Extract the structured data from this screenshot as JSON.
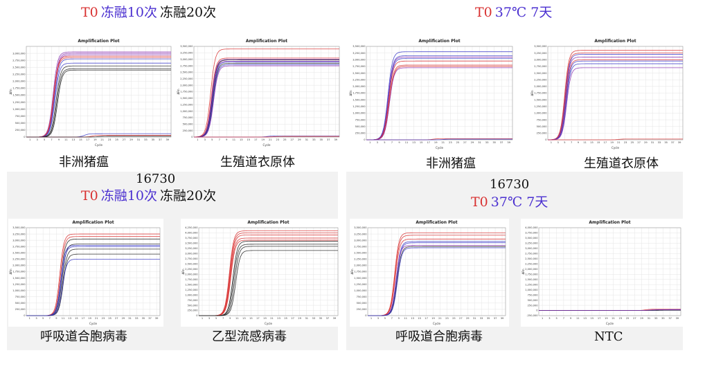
{
  "colors": {
    "red": "#d83030",
    "blue": "#3a3ac8",
    "purple": "#8a2fb0",
    "black": "#222222",
    "grid": "#e4e4e4"
  },
  "headers": [
    {
      "id": "hdr-top-left",
      "parts": [
        {
          "text": "T0",
          "color": "#d83030"
        },
        {
          "text": "冻融10次",
          "color": "#4a2fd0"
        },
        {
          "text": "冻融20次",
          "color": "#111111"
        }
      ]
    },
    {
      "id": "hdr-top-right",
      "parts": [
        {
          "text": "T0",
          "color": "#d83030"
        },
        {
          "text": "37℃ 7天",
          "color": "#4a2fd0"
        }
      ]
    },
    {
      "id": "hdr-bottom-left",
      "parts": [
        {
          "text": "T0",
          "color": "#d83030"
        },
        {
          "text": "冻融10次",
          "color": "#4a2fd0"
        },
        {
          "text": "冻融20次",
          "color": "#111111"
        }
      ]
    },
    {
      "id": "hdr-bottom-right",
      "parts": [
        {
          "text": "T0",
          "color": "#d83030"
        },
        {
          "text": "37℃ 7天",
          "color": "#4a2fd0"
        }
      ]
    }
  ],
  "labels": {
    "num_left": "16730",
    "num_right": "16730",
    "captions": [
      "非洲猪瘟",
      "生殖道衣原体",
      "非洲猪瘟",
      "生殖道衣原体",
      "呼吸道合胞病毒",
      "乙型流感病毒",
      "呼吸道合胞病毒",
      "NTC"
    ]
  },
  "chart_data": [
    {
      "type": "line",
      "title": "Amplification Plot",
      "xlabel": "Cycle",
      "ylabel": "ΔRn",
      "xlim": [
        0,
        40
      ],
      "ylim": [
        0,
        3250000
      ],
      "yticks": [
        "3,000,000",
        "2,750,000",
        "2,500,000",
        "2,250,000",
        "2,000,000",
        "1,750,000",
        "1,500,000",
        "1,250,000",
        "1,000,000",
        "750,000",
        "500,000",
        "250,000",
        "0"
      ],
      "xticks": [
        "1",
        "3",
        "5",
        "7",
        "9",
        "11",
        "13",
        "15",
        "17",
        "19",
        "21",
        "23",
        "25",
        "27",
        "29",
        "31",
        "33",
        "35",
        "37",
        "39"
      ],
      "series": [
        {
          "color": "purple",
          "plateau": 3050000,
          "ct": 7.4
        },
        {
          "color": "purple",
          "plateau": 3000000,
          "ct": 7.6
        },
        {
          "color": "purple",
          "plateau": 2950000,
          "ct": 7.7
        },
        {
          "color": "red",
          "plateau": 2900000,
          "ct": 7.5
        },
        {
          "color": "red",
          "plateau": 2850000,
          "ct": 7.6
        },
        {
          "color": "blue",
          "plateau": 2800000,
          "ct": 7.8
        },
        {
          "color": "blue",
          "plateau": 2650000,
          "ct": 7.9
        },
        {
          "color": "black",
          "plateau": 2550000,
          "ct": 8.2
        },
        {
          "color": "black",
          "plateau": 2450000,
          "ct": 8.4
        },
        {
          "color": "black",
          "plateau": 2400000,
          "ct": 8.6
        },
        {
          "color": "blue",
          "plateau": 120000,
          "ct": 16
        },
        {
          "color": "red",
          "plateau": 60000,
          "ct": 18
        },
        {
          "color": "black",
          "plateau": 30000,
          "ct": 20
        }
      ]
    },
    {
      "type": "line",
      "title": "Amplification Plot",
      "xlabel": "Cycle",
      "ylabel": "ΔRn",
      "xlim": [
        0,
        40
      ],
      "ylim": [
        0,
        3500000
      ],
      "yticks": [
        "3,500,000",
        "3,250,000",
        "3,000,000",
        "2,750,000",
        "2,500,000",
        "2,250,000",
        "2,000,000",
        "1,750,000",
        "1,500,000",
        "1,250,000",
        "1,000,000",
        "750,000",
        "500,000",
        "250,000",
        "0"
      ],
      "xticks": [
        "1",
        "3",
        "5",
        "7",
        "9",
        "11",
        "13",
        "15",
        "17",
        "19",
        "21",
        "23",
        "25",
        "27",
        "29",
        "31",
        "33",
        "35",
        "37",
        "39"
      ],
      "series": [
        {
          "color": "red",
          "plateau": 3400000,
          "ct": 4.6
        },
        {
          "color": "red",
          "plateau": 3050000,
          "ct": 4.8
        },
        {
          "color": "purple",
          "plateau": 3000000,
          "ct": 4.9
        },
        {
          "color": "black",
          "plateau": 2980000,
          "ct": 5.0
        },
        {
          "color": "purple",
          "plateau": 2930000,
          "ct": 5.0
        },
        {
          "color": "blue",
          "plateau": 2900000,
          "ct": 5.1
        },
        {
          "color": "black",
          "plateau": 2850000,
          "ct": 5.2
        },
        {
          "color": "blue",
          "plateau": 2800000,
          "ct": 5.3
        },
        {
          "color": "purple",
          "plateau": 2750000,
          "ct": 5.4
        },
        {
          "color": "blue",
          "plateau": 40000,
          "ct": 20
        },
        {
          "color": "red",
          "plateau": 25000,
          "ct": 22
        }
      ]
    },
    {
      "type": "line",
      "title": "Amplification Plot",
      "xlabel": "Cycle",
      "ylabel": "ΔRn",
      "xlim": [
        0,
        40
      ],
      "ylim": [
        0,
        3500000
      ],
      "yticks": [
        "3,500,000",
        "3,250,000",
        "3,000,000",
        "2,750,000",
        "2,500,000",
        "2,250,000",
        "2,000,000",
        "1,750,000",
        "1,500,000",
        "1,250,000",
        "1,000,000",
        "750,000",
        "500,000",
        "250,000",
        "0"
      ],
      "xticks": [
        "1",
        "3",
        "5",
        "7",
        "9",
        "11",
        "13",
        "15",
        "17",
        "19",
        "21",
        "23",
        "25",
        "27",
        "29",
        "31",
        "33",
        "35",
        "37",
        "39"
      ],
      "series": [
        {
          "color": "blue",
          "plateau": 3300000,
          "ct": 5.9
        },
        {
          "color": "blue",
          "plateau": 3150000,
          "ct": 6.0
        },
        {
          "color": "purple",
          "plateau": 3100000,
          "ct": 6.0
        },
        {
          "color": "blue",
          "plateau": 3050000,
          "ct": 6.1
        },
        {
          "color": "red",
          "plateau": 2950000,
          "ct": 6.1
        },
        {
          "color": "red",
          "plateau": 2800000,
          "ct": 6.2
        },
        {
          "color": "red",
          "plateau": 2750000,
          "ct": 6.3
        },
        {
          "color": "purple",
          "plateau": 2700000,
          "ct": 6.3
        },
        {
          "color": "red",
          "plateau": 40000,
          "ct": 18
        },
        {
          "color": "blue",
          "plateau": 25000,
          "ct": 21
        }
      ]
    },
    {
      "type": "line",
      "title": "Amplification Plot",
      "xlabel": "Cycle",
      "ylabel": "ΔRn",
      "xlim": [
        0,
        40
      ],
      "ylim": [
        0,
        3500000
      ],
      "yticks": [
        "3,500,000",
        "3,250,000",
        "3,000,000",
        "2,750,000",
        "2,500,000",
        "2,250,000",
        "2,000,000",
        "1,750,000",
        "1,500,000",
        "1,250,000",
        "1,000,000",
        "750,000",
        "500,000",
        "250,000",
        "0"
      ],
      "xticks": [
        "1",
        "3",
        "5",
        "7",
        "9",
        "11",
        "13",
        "15",
        "17",
        "19",
        "21",
        "23",
        "25",
        "27",
        "29",
        "31",
        "33",
        "35",
        "37",
        "39"
      ],
      "series": [
        {
          "color": "red",
          "plateau": 3350000,
          "ct": 5.0
        },
        {
          "color": "red",
          "plateau": 3250000,
          "ct": 5.1
        },
        {
          "color": "blue",
          "plateau": 3200000,
          "ct": 5.2
        },
        {
          "color": "purple",
          "plateau": 3100000,
          "ct": 5.2
        },
        {
          "color": "red",
          "plateau": 3000000,
          "ct": 5.3
        },
        {
          "color": "blue",
          "plateau": 2950000,
          "ct": 5.4
        },
        {
          "color": "blue",
          "plateau": 2850000,
          "ct": 5.5
        },
        {
          "color": "purple",
          "plateau": 2700000,
          "ct": 5.6
        },
        {
          "color": "red",
          "plateau": 30000,
          "ct": 21
        }
      ]
    },
    {
      "type": "line",
      "title": "Amplification Plot",
      "xlabel": "Cycle",
      "ylabel": "ΔRn",
      "xlim": [
        0,
        40
      ],
      "ylim": [
        0,
        3500000
      ],
      "yticks": [
        "3,500,000",
        "3,250,000",
        "3,000,000",
        "2,750,000",
        "2,500,000",
        "2,250,000",
        "2,000,000",
        "1,750,000",
        "1,500,000",
        "1,250,000",
        "1,000,000",
        "750,000",
        "500,000",
        "250,000",
        "0"
      ],
      "xticks": [
        "1",
        "3",
        "5",
        "7",
        "9",
        "11",
        "13",
        "15",
        "17",
        "19",
        "21",
        "23",
        "25",
        "27",
        "29",
        "31",
        "33",
        "35",
        "37",
        "39"
      ],
      "series": [
        {
          "color": "red",
          "plateau": 3250000,
          "ct": 10.0
        },
        {
          "color": "red",
          "plateau": 3150000,
          "ct": 10.2
        },
        {
          "color": "black",
          "plateau": 3050000,
          "ct": 10.4
        },
        {
          "color": "black",
          "plateau": 2850000,
          "ct": 10.7
        },
        {
          "color": "blue",
          "plateau": 2800000,
          "ct": 10.3
        },
        {
          "color": "blue",
          "plateau": 2750000,
          "ct": 10.5
        },
        {
          "color": "black",
          "plateau": 2650000,
          "ct": 10.9
        },
        {
          "color": "black",
          "plateau": 2450000,
          "ct": 11.0
        },
        {
          "color": "blue",
          "plateau": 2250000,
          "ct": 10.8
        }
      ]
    },
    {
      "type": "line",
      "title": "Amplification Plot",
      "xlabel": "Cycle",
      "ylabel": "ΔRn",
      "xlim": [
        0,
        40
      ],
      "ylim": [
        0,
        4250000
      ],
      "yticks": [
        "4,250,000",
        "4,000,000",
        "3,750,000",
        "3,500,000",
        "3,250,000",
        "3,000,000",
        "2,750,000",
        "2,500,000",
        "2,250,000",
        "2,000,000",
        "1,750,000",
        "1,500,000",
        "1,250,000",
        "1,000,000",
        "750,000",
        "500,000",
        "250,000",
        "0"
      ],
      "xticks": [
        "1",
        "3",
        "5",
        "7",
        "9",
        "11",
        "13",
        "15",
        "17",
        "19",
        "21",
        "23",
        "25",
        "27",
        "29",
        "31",
        "33",
        "35",
        "37",
        "39"
      ],
      "series": [
        {
          "color": "red",
          "plateau": 4100000,
          "ct": 8.8
        },
        {
          "color": "red",
          "plateau": 4000000,
          "ct": 8.9
        },
        {
          "color": "red",
          "plateau": 3900000,
          "ct": 9.0
        },
        {
          "color": "red",
          "plateau": 3750000,
          "ct": 9.1
        },
        {
          "color": "red",
          "plateau": 3650000,
          "ct": 9.2
        },
        {
          "color": "black",
          "plateau": 3600000,
          "ct": 9.8
        },
        {
          "color": "black",
          "plateau": 3450000,
          "ct": 10.0
        },
        {
          "color": "black",
          "plateau": 3350000,
          "ct": 10.3
        },
        {
          "color": "black",
          "plateau": 3150000,
          "ct": 10.6
        }
      ]
    },
    {
      "type": "line",
      "title": "Amplification Plot",
      "xlabel": "Cycle",
      "ylabel": "ΔRn",
      "xlim": [
        0,
        40
      ],
      "ylim": [
        0,
        3500000
      ],
      "yticks": [
        "3,500,000",
        "3,250,000",
        "3,000,000",
        "2,750,000",
        "2,500,000",
        "2,250,000",
        "2,000,000",
        "1,750,000",
        "1,500,000",
        "1,250,000",
        "1,000,000",
        "750,000",
        "500,000",
        "250,000",
        "0"
      ],
      "xticks": [
        "1",
        "3",
        "5",
        "7",
        "9",
        "11",
        "13",
        "15",
        "17",
        "19",
        "21",
        "23",
        "25",
        "27",
        "29",
        "31",
        "33",
        "35",
        "37",
        "39"
      ],
      "series": [
        {
          "color": "red",
          "plateau": 3300000,
          "ct": 7.8
        },
        {
          "color": "red",
          "plateau": 3200000,
          "ct": 7.9
        },
        {
          "color": "red",
          "plateau": 3050000,
          "ct": 8.0
        },
        {
          "color": "blue",
          "plateau": 2950000,
          "ct": 8.3
        },
        {
          "color": "blue",
          "plateau": 2900000,
          "ct": 8.4
        },
        {
          "color": "purple",
          "plateau": 2800000,
          "ct": 8.2
        },
        {
          "color": "black",
          "plateau": 2750000,
          "ct": 8.5
        },
        {
          "color": "blue",
          "plateau": 2700000,
          "ct": 8.6
        }
      ]
    },
    {
      "type": "line",
      "title": "Amplification Plot",
      "xlabel": "Cycle",
      "ylabel": "ΔRn",
      "xlim": [
        0,
        40
      ],
      "ylim": [
        -250000,
        4000000
      ],
      "yticks": [
        "4,000,000",
        "3,750,000",
        "3,500,000",
        "3,250,000",
        "3,000,000",
        "2,750,000",
        "2,500,000",
        "2,250,000",
        "2,000,000",
        "1,750,000",
        "1,500,000",
        "1,250,000",
        "1,000,000",
        "750,000",
        "500,000",
        "250,000",
        "0",
        "-250,000"
      ],
      "xticks": [
        "1",
        "3",
        "5",
        "7",
        "9",
        "11",
        "13",
        "15",
        "17",
        "19",
        "21",
        "23",
        "25",
        "27",
        "29",
        "31",
        "33",
        "35",
        "37",
        "39"
      ],
      "series": [
        {
          "color": "red",
          "plateau": 60000,
          "ct": 30
        },
        {
          "color": "blue",
          "plateau": 40000,
          "ct": 32
        },
        {
          "color": "blue",
          "plateau": 20000,
          "ct": 33
        },
        {
          "color": "black",
          "plateau": 10000,
          "ct": 34
        },
        {
          "color": "purple",
          "plateau": 30000,
          "ct": 31
        }
      ]
    }
  ]
}
